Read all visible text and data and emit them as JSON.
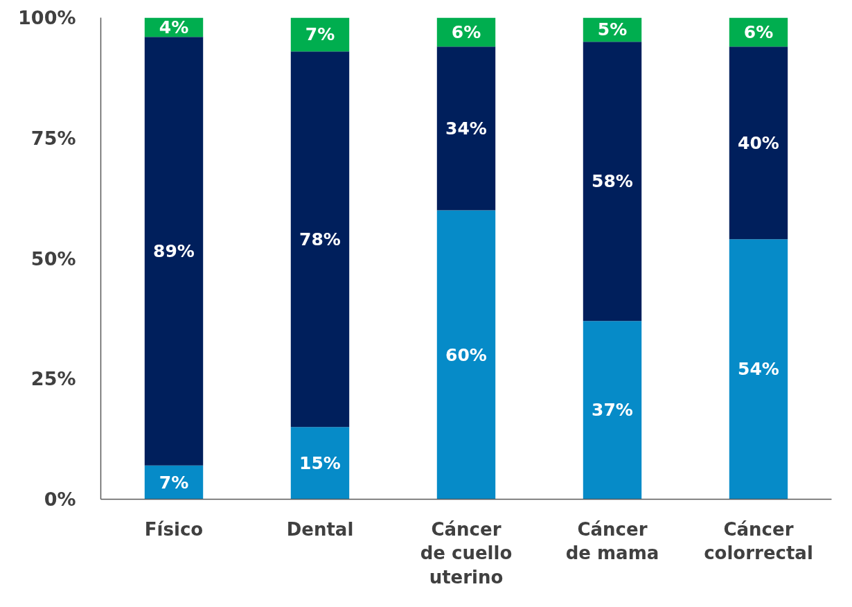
{
  "chart_data": {
    "type": "bar",
    "stacked": true,
    "categories": [
      "Físico",
      "Dental",
      "Cáncer de cuello uterino",
      "Cáncer de mama",
      "Cáncer colorrectal"
    ],
    "series": [
      {
        "color": "#068bc8",
        "values": [
          7,
          15,
          60,
          37,
          54
        ],
        "value_labels": [
          "7%",
          "15%",
          "60%",
          "37%",
          "54%"
        ]
      },
      {
        "color": "#001f5c",
        "values": [
          89,
          78,
          34,
          58,
          40
        ],
        "value_labels": [
          "89%",
          "78%",
          "34%",
          "58%",
          "40%"
        ]
      },
      {
        "color": "#00ae4f",
        "values": [
          4,
          7,
          6,
          5,
          6
        ],
        "value_labels": [
          "4%",
          "7%",
          "6%",
          "5%",
          "6%"
        ]
      }
    ],
    "ylim": [
      0,
      100
    ],
    "yticks": [
      {
        "value": 0,
        "label": "0%"
      },
      {
        "value": 25,
        "label": "25%"
      },
      {
        "value": 50,
        "label": "50%"
      },
      {
        "value": 75,
        "label": "75%"
      },
      {
        "value": 100,
        "label": "100%"
      }
    ],
    "grid": false
  }
}
